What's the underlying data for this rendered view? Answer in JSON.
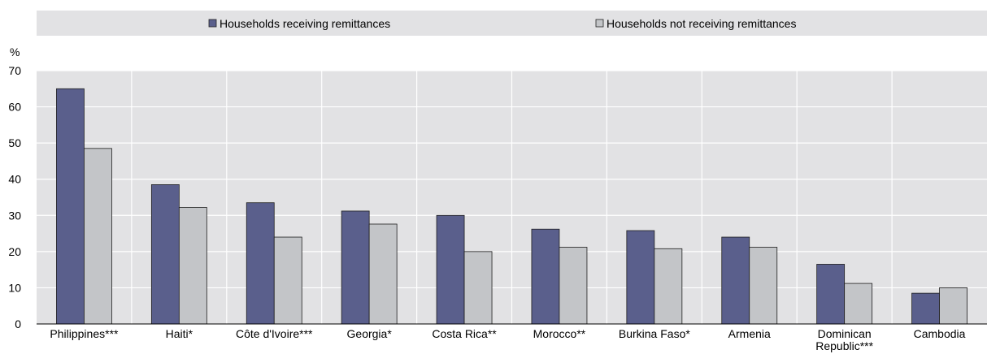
{
  "chart_data": {
    "type": "bar",
    "y_unit_label": "%",
    "ylim": [
      0,
      70
    ],
    "yticks": [
      0,
      10,
      20,
      30,
      40,
      50,
      60,
      70
    ],
    "grid": true,
    "legend_position": "top",
    "categories": [
      [
        "Philippines***"
      ],
      [
        "Haiti*"
      ],
      [
        "Côte d'Ivoire***"
      ],
      [
        "Georgia*"
      ],
      [
        "Costa Rica**"
      ],
      [
        "Morocco**"
      ],
      [
        "Burkina Faso*"
      ],
      [
        "Armenia"
      ],
      [
        "Dominican",
        "Republic***"
      ],
      [
        "Cambodia"
      ]
    ],
    "series": [
      {
        "name": "Households receiving remittances",
        "color": "#5a5f8c",
        "values": [
          65,
          38.5,
          33.5,
          31.2,
          30,
          26.2,
          25.8,
          24,
          16.5,
          8.5
        ]
      },
      {
        "name": "Households not receiving remittances",
        "color": "#c3c5c8",
        "values": [
          48.5,
          32.2,
          24,
          27.6,
          20,
          21.2,
          20.8,
          21.2,
          11.2,
          10
        ]
      }
    ]
  }
}
